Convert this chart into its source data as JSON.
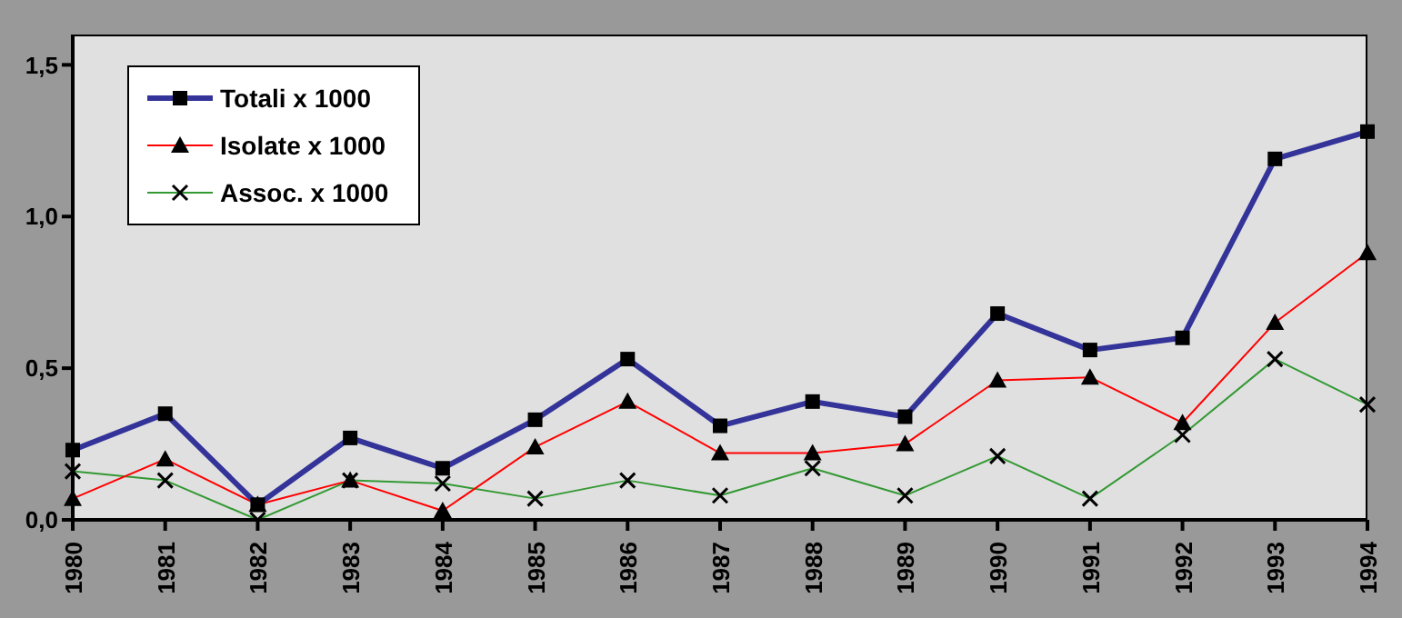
{
  "chart_data": {
    "type": "line",
    "categories": [
      "1980",
      "1981",
      "1982",
      "1983",
      "1984",
      "1985",
      "1986",
      "1987",
      "1988",
      "1989",
      "1990",
      "1991",
      "1992",
      "1993",
      "1994"
    ],
    "series": [
      {
        "name": "Totali x 1000",
        "color": "#333399",
        "marker": "square",
        "values": [
          0.23,
          0.35,
          0.05,
          0.27,
          0.17,
          0.33,
          0.53,
          0.31,
          0.39,
          0.34,
          0.68,
          0.56,
          0.6,
          1.19,
          1.28
        ]
      },
      {
        "name": "Isolate x 1000",
        "color": "#ff0000",
        "marker": "triangle",
        "values": [
          0.07,
          0.2,
          0.05,
          0.13,
          0.03,
          0.24,
          0.39,
          0.22,
          0.22,
          0.25,
          0.46,
          0.47,
          0.32,
          0.65,
          0.88
        ]
      },
      {
        "name": "Assoc. x 1000",
        "color": "#339933",
        "marker": "cross",
        "values": [
          0.16,
          0.13,
          0,
          0.13,
          0.12,
          0.07,
          0.13,
          0.08,
          0.17,
          0.08,
          0.21,
          0.07,
          0.28,
          0.53,
          0.38
        ]
      }
    ],
    "ylim": [
      0,
      1.6
    ],
    "yticks": [
      {
        "value": 0,
        "label": "0,0"
      },
      {
        "value": 0.5,
        "label": "0,5"
      },
      {
        "value": 1,
        "label": "1,0"
      },
      {
        "value": 1.5,
        "label": "1,5"
      }
    ],
    "legend": "top left",
    "line_style": "solid"
  }
}
